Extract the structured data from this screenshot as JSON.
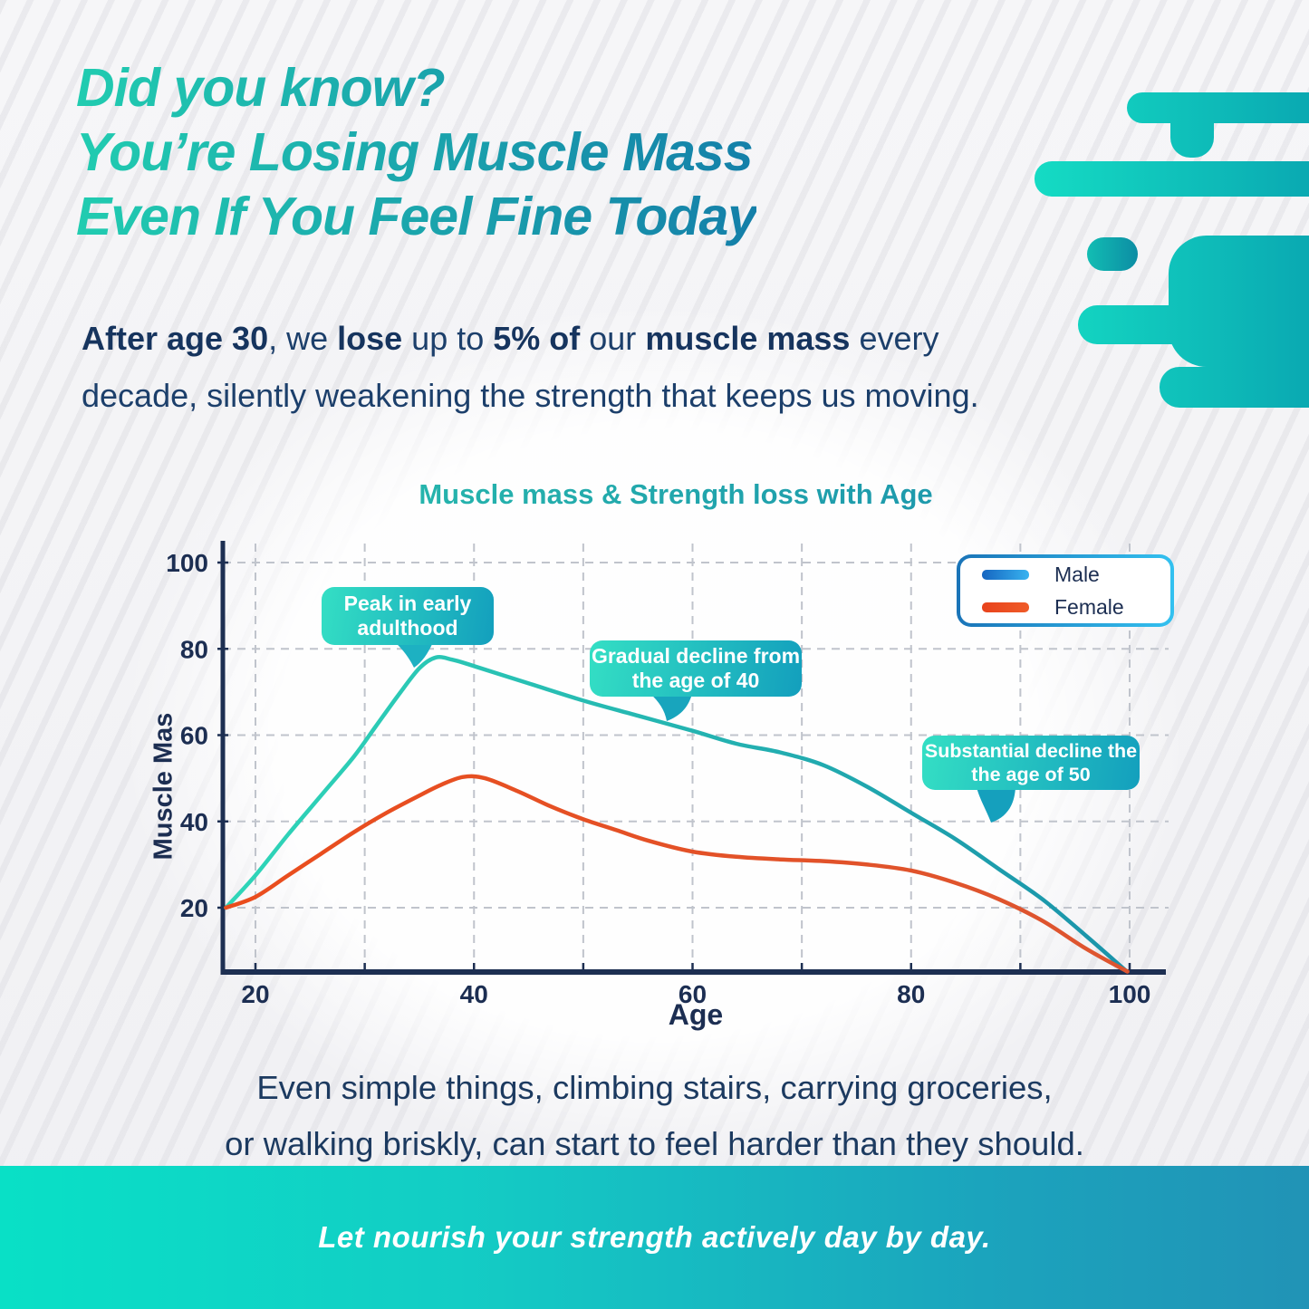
{
  "header": {
    "title_lines": [
      "Did you know?",
      "You’re Losing Muscle Mass",
      "Even If You Feel Fine Today"
    ]
  },
  "intro": {
    "segments": [
      {
        "text": "After age 30",
        "bold": true
      },
      {
        "text": ", we ",
        "bold": false
      },
      {
        "text": "lose",
        "bold": true
      },
      {
        "text": " up to ",
        "bold": false
      },
      {
        "text": "5% of",
        "bold": true
      },
      {
        "text": " our ",
        "bold": false
      },
      {
        "text": "muscle mass",
        "bold": true
      },
      {
        "text": " every decade, silently weakening the strength that keeps us moving.",
        "bold": false
      }
    ]
  },
  "chart_data": {
    "type": "line",
    "title": "Muscle mass & Strength loss with Age",
    "xlabel": "Age",
    "ylabel": "Muscle Mas",
    "xlim": [
      20,
      100
    ],
    "ylim": [
      0,
      100
    ],
    "x_ticks": [
      20,
      40,
      60,
      80,
      100
    ],
    "y_ticks": [
      20,
      40,
      60,
      80,
      100
    ],
    "x_grid_step": 10,
    "grid": "dashed",
    "legend_position": "top-right",
    "series": [
      {
        "name": "Male",
        "color": "#21b2a7",
        "points": [
          [
            17.3,
            20
          ],
          [
            20,
            27.5
          ],
          [
            23,
            37
          ],
          [
            26,
            46
          ],
          [
            29,
            55
          ],
          [
            31,
            62
          ],
          [
            33,
            69
          ],
          [
            35,
            75.5
          ],
          [
            36.5,
            78
          ],
          [
            38,
            77.5
          ],
          [
            40,
            76
          ],
          [
            45,
            72
          ],
          [
            50,
            68
          ],
          [
            55,
            64.5
          ],
          [
            60,
            61
          ],
          [
            64,
            58
          ],
          [
            68,
            56
          ],
          [
            72,
            53
          ],
          [
            76,
            48
          ],
          [
            80,
            42
          ],
          [
            84,
            36
          ],
          [
            88,
            29
          ],
          [
            92,
            22
          ],
          [
            96,
            13.5
          ],
          [
            99.7,
            5.3
          ]
        ]
      },
      {
        "name": "Female",
        "color": "#e4511f",
        "points": [
          [
            17.3,
            20
          ],
          [
            20,
            22.5
          ],
          [
            23,
            27.5
          ],
          [
            26,
            32.5
          ],
          [
            29,
            37.5
          ],
          [
            32,
            42
          ],
          [
            35,
            46
          ],
          [
            37,
            48.5
          ],
          [
            39,
            50.3
          ],
          [
            41,
            50
          ],
          [
            44,
            47
          ],
          [
            47,
            43.5
          ],
          [
            50,
            40.5
          ],
          [
            53,
            38
          ],
          [
            56,
            35.5
          ],
          [
            60,
            33
          ],
          [
            64,
            31.8
          ],
          [
            68,
            31.2
          ],
          [
            72,
            30.8
          ],
          [
            76,
            30
          ],
          [
            80,
            28.6
          ],
          [
            84,
            25.8
          ],
          [
            88,
            22
          ],
          [
            92,
            17
          ],
          [
            96,
            10.5
          ],
          [
            99.8,
            5.2
          ]
        ]
      }
    ],
    "annotations": [
      {
        "text": "Peak in early adulthood",
        "target_age": 36,
        "target_value": 78
      },
      {
        "text": "Gradual decline from the age of 40",
        "target_age": 58,
        "target_value": 64
      },
      {
        "text": "Substantial decline the the age of 50",
        "target_age": 85,
        "target_value": 38
      }
    ]
  },
  "legend": {
    "items": [
      {
        "label": "Male",
        "color_start": "#1565c0",
        "color_end": "#38b3f0"
      },
      {
        "label": "Female",
        "color_start": "#e8431c",
        "color_end": "#ef5b28"
      }
    ]
  },
  "body_text": {
    "lines": [
      "Even simple things, climbing stairs, carrying groceries,",
      "or walking briskly, can start to feel harder than they should."
    ]
  },
  "footer": {
    "text": "Let nourish your strength actively day by day."
  },
  "colors": {
    "title_start": "#21ccb0",
    "title_end": "#147fa9",
    "intro_text": "#1c3f6b",
    "axis": "#1d2f52",
    "grid": "#c0c4cc",
    "male_line_start": "#2fd6b8",
    "male_line_end": "#1a93aa",
    "female_line_start": "#ea4d1d",
    "female_line_end": "#dd5530",
    "callout_start": "#34dfc4",
    "callout_end": "#139fbd",
    "legend_border_start": "#1a74b8",
    "legend_border_end": "#33c1f0",
    "splash_start": "#15dcc4",
    "splash_end": "#0aa9b2",
    "footer_start": "#09e0c6",
    "footer_end": "#2193b6"
  }
}
